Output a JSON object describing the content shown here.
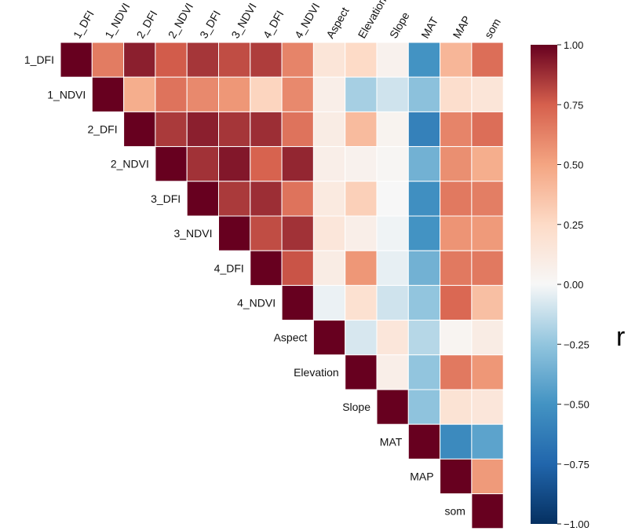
{
  "chart_data": {
    "type": "heatmap",
    "variables": [
      "1_DFI",
      "1_NDVI",
      "2_DFI",
      "2_NDVI",
      "3_DFI",
      "3_NDVI",
      "4_DFI",
      "4_NDVI",
      "Aspect",
      "Elevation",
      "Slope",
      "MAT",
      "MAP",
      "som"
    ],
    "matrix": [
      [
        1.0,
        0.65,
        0.92,
        0.76,
        0.86,
        0.8,
        0.84,
        0.62,
        0.16,
        0.25,
        0.05,
        -0.5,
        0.42,
        0.7
      ],
      [
        null,
        1.0,
        0.46,
        0.68,
        0.6,
        0.55,
        0.28,
        0.6,
        0.08,
        -0.2,
        -0.1,
        -0.27,
        0.22,
        0.16
      ],
      [
        null,
        null,
        1.0,
        0.85,
        0.92,
        0.86,
        0.88,
        0.68,
        0.1,
        0.4,
        0.04,
        -0.6,
        0.62,
        0.7
      ],
      [
        null,
        null,
        null,
        1.0,
        0.87,
        0.94,
        0.74,
        0.9,
        0.08,
        0.05,
        0.02,
        -0.35,
        0.58,
        0.46
      ],
      [
        null,
        null,
        null,
        null,
        1.0,
        0.85,
        0.88,
        0.68,
        0.12,
        0.3,
        0.0,
        -0.52,
        0.66,
        0.64
      ],
      [
        null,
        null,
        null,
        null,
        null,
        1.0,
        0.8,
        0.87,
        0.15,
        0.08,
        -0.02,
        -0.5,
        0.56,
        0.54
      ],
      [
        null,
        null,
        null,
        null,
        null,
        null,
        1.0,
        0.78,
        0.1,
        0.55,
        -0.04,
        -0.35,
        0.66,
        0.66
      ],
      [
        null,
        null,
        null,
        null,
        null,
        null,
        null,
        1.0,
        -0.03,
        0.2,
        -0.1,
        -0.25,
        0.72,
        0.38
      ],
      [
        null,
        null,
        null,
        null,
        null,
        null,
        null,
        null,
        1.0,
        -0.08,
        0.15,
        -0.16,
        0.03,
        0.1
      ],
      [
        null,
        null,
        null,
        null,
        null,
        null,
        null,
        null,
        null,
        1.0,
        0.08,
        -0.25,
        0.66,
        0.55
      ],
      [
        null,
        null,
        null,
        null,
        null,
        null,
        null,
        null,
        null,
        null,
        1.0,
        -0.26,
        0.18,
        0.15
      ],
      [
        null,
        null,
        null,
        null,
        null,
        null,
        null,
        null,
        null,
        null,
        null,
        1.0,
        -0.55,
        -0.42
      ],
      [
        null,
        null,
        null,
        null,
        null,
        null,
        null,
        null,
        null,
        null,
        null,
        null,
        1.0,
        0.54
      ],
      [
        null,
        null,
        null,
        null,
        null,
        null,
        null,
        null,
        null,
        null,
        null,
        null,
        null,
        1.0
      ]
    ],
    "colorbar": {
      "label": "r",
      "range": [
        -1.0,
        1.0
      ],
      "ticks": [
        "1.00",
        "0.75",
        "0.50",
        "0.25",
        "0.00",
        "−0.25",
        "−0.50",
        "−0.75",
        "−1.00"
      ],
      "colormap": "RdBu_r"
    }
  }
}
